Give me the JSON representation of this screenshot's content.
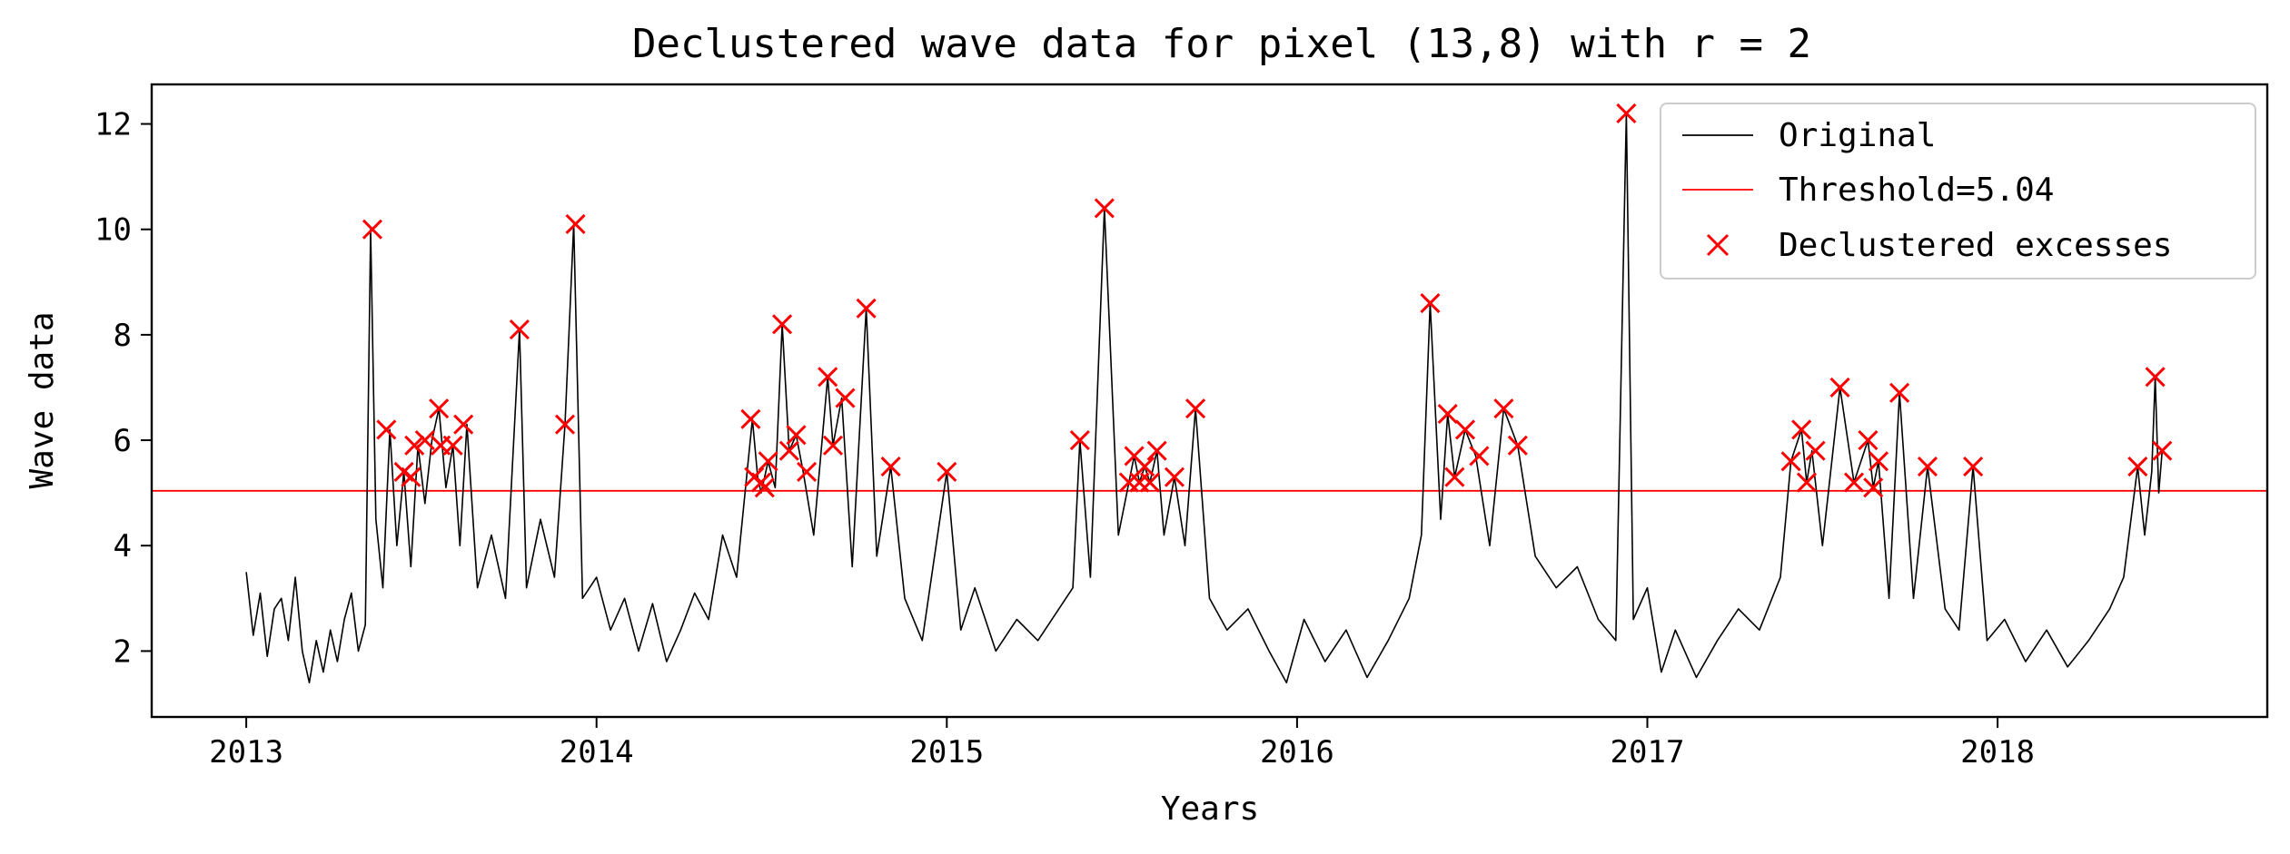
{
  "chart_data": {
    "type": "line",
    "title": "Declustered wave data for pixel (13,8) with r = 2",
    "xlabel": "Years",
    "ylabel": "Wave data",
    "xlim": [
      2012.73,
      2018.77
    ],
    "ylim": [
      0.75,
      12.75
    ],
    "xticks": [
      2013,
      2014,
      2015,
      2016,
      2017,
      2018
    ],
    "yticks": [
      2,
      4,
      6,
      8,
      10,
      12
    ],
    "xtick_labels": [
      "2013",
      "2014",
      "2015",
      "2016",
      "2017",
      "2018"
    ],
    "ytick_labels": [
      "2",
      "4",
      "6",
      "8",
      "10",
      "12"
    ],
    "grid": false,
    "legend_position": "top-right",
    "colors": {
      "original": "#000000",
      "threshold": "#ff0000",
      "excess": "#ff0000"
    },
    "threshold": {
      "label": "Threshold=5.04",
      "value": 5.04
    },
    "series": [
      {
        "name": "Original",
        "style": "line",
        "points": [
          [
            2013.0,
            3.5
          ],
          [
            2013.02,
            2.3
          ],
          [
            2013.04,
            3.1
          ],
          [
            2013.06,
            1.9
          ],
          [
            2013.08,
            2.8
          ],
          [
            2013.1,
            3.0
          ],
          [
            2013.12,
            2.2
          ],
          [
            2013.14,
            3.4
          ],
          [
            2013.16,
            2.0
          ],
          [
            2013.18,
            1.4
          ],
          [
            2013.2,
            2.2
          ],
          [
            2013.22,
            1.6
          ],
          [
            2013.24,
            2.4
          ],
          [
            2013.26,
            1.8
          ],
          [
            2013.28,
            2.6
          ],
          [
            2013.3,
            3.1
          ],
          [
            2013.32,
            2.0
          ],
          [
            2013.34,
            2.5
          ],
          [
            2013.355,
            10.0
          ],
          [
            2013.37,
            4.5
          ],
          [
            2013.39,
            3.2
          ],
          [
            2013.41,
            6.2
          ],
          [
            2013.43,
            4.0
          ],
          [
            2013.45,
            5.4
          ],
          [
            2013.47,
            3.6
          ],
          [
            2013.49,
            5.9
          ],
          [
            2013.51,
            4.8
          ],
          [
            2013.53,
            6.0
          ],
          [
            2013.55,
            6.6
          ],
          [
            2013.57,
            5.1
          ],
          [
            2013.59,
            5.9
          ],
          [
            2013.61,
            4.0
          ],
          [
            2013.63,
            6.3
          ],
          [
            2013.66,
            3.2
          ],
          [
            2013.7,
            4.2
          ],
          [
            2013.74,
            3.0
          ],
          [
            2013.78,
            8.1
          ],
          [
            2013.8,
            3.2
          ],
          [
            2013.84,
            4.5
          ],
          [
            2013.88,
            3.4
          ],
          [
            2013.91,
            6.3
          ],
          [
            2013.935,
            10.1
          ],
          [
            2013.96,
            3.0
          ],
          [
            2014.0,
            3.4
          ],
          [
            2014.04,
            2.4
          ],
          [
            2014.08,
            3.0
          ],
          [
            2014.12,
            2.0
          ],
          [
            2014.16,
            2.9
          ],
          [
            2014.2,
            1.8
          ],
          [
            2014.24,
            2.4
          ],
          [
            2014.28,
            3.1
          ],
          [
            2014.32,
            2.6
          ],
          [
            2014.36,
            4.2
          ],
          [
            2014.4,
            3.4
          ],
          [
            2014.445,
            6.4
          ],
          [
            2014.46,
            5.3
          ],
          [
            2014.47,
            5.0
          ],
          [
            2014.49,
            5.6
          ],
          [
            2014.51,
            5.1
          ],
          [
            2014.53,
            8.2
          ],
          [
            2014.55,
            5.8
          ],
          [
            2014.57,
            6.1
          ],
          [
            2014.59,
            5.4
          ],
          [
            2014.62,
            4.2
          ],
          [
            2014.66,
            7.2
          ],
          [
            2014.675,
            5.9
          ],
          [
            2014.7,
            6.8
          ],
          [
            2014.73,
            3.6
          ],
          [
            2014.77,
            8.5
          ],
          [
            2014.8,
            3.8
          ],
          [
            2014.84,
            5.5
          ],
          [
            2014.88,
            3.0
          ],
          [
            2014.93,
            2.2
          ],
          [
            2015.0,
            5.4
          ],
          [
            2015.04,
            2.4
          ],
          [
            2015.08,
            3.2
          ],
          [
            2015.14,
            2.0
          ],
          [
            2015.2,
            2.6
          ],
          [
            2015.26,
            2.2
          ],
          [
            2015.32,
            2.8
          ],
          [
            2015.36,
            3.2
          ],
          [
            2015.38,
            6.0
          ],
          [
            2015.41,
            3.4
          ],
          [
            2015.45,
            10.4
          ],
          [
            2015.49,
            4.2
          ],
          [
            2015.52,
            5.2
          ],
          [
            2015.535,
            5.7
          ],
          [
            2015.55,
            5.2
          ],
          [
            2015.565,
            5.5
          ],
          [
            2015.58,
            5.2
          ],
          [
            2015.6,
            5.8
          ],
          [
            2015.62,
            4.2
          ],
          [
            2015.65,
            5.3
          ],
          [
            2015.68,
            4.0
          ],
          [
            2015.71,
            6.6
          ],
          [
            2015.75,
            3.0
          ],
          [
            2015.8,
            2.4
          ],
          [
            2015.86,
            2.8
          ],
          [
            2015.92,
            2.0
          ],
          [
            2015.97,
            1.4
          ],
          [
            2016.02,
            2.6
          ],
          [
            2016.08,
            1.8
          ],
          [
            2016.14,
            2.4
          ],
          [
            2016.2,
            1.5
          ],
          [
            2016.26,
            2.2
          ],
          [
            2016.32,
            3.0
          ],
          [
            2016.355,
            4.2
          ],
          [
            2016.38,
            8.6
          ],
          [
            2016.41,
            4.5
          ],
          [
            2016.43,
            6.5
          ],
          [
            2016.45,
            5.3
          ],
          [
            2016.48,
            6.2
          ],
          [
            2016.51,
            5.7
          ],
          [
            2016.55,
            4.0
          ],
          [
            2016.59,
            6.6
          ],
          [
            2016.63,
            5.9
          ],
          [
            2016.68,
            3.8
          ],
          [
            2016.74,
            3.2
          ],
          [
            2016.8,
            3.6
          ],
          [
            2016.86,
            2.6
          ],
          [
            2016.91,
            2.2
          ],
          [
            2016.94,
            12.2
          ],
          [
            2016.96,
            2.6
          ],
          [
            2017.0,
            3.2
          ],
          [
            2017.04,
            1.6
          ],
          [
            2017.08,
            2.4
          ],
          [
            2017.14,
            1.5
          ],
          [
            2017.2,
            2.2
          ],
          [
            2017.26,
            2.8
          ],
          [
            2017.32,
            2.4
          ],
          [
            2017.38,
            3.4
          ],
          [
            2017.41,
            5.6
          ],
          [
            2017.44,
            6.2
          ],
          [
            2017.455,
            5.2
          ],
          [
            2017.47,
            5.8
          ],
          [
            2017.5,
            4.0
          ],
          [
            2017.55,
            7.0
          ],
          [
            2017.59,
            5.2
          ],
          [
            2017.63,
            6.0
          ],
          [
            2017.645,
            5.1
          ],
          [
            2017.66,
            5.6
          ],
          [
            2017.69,
            3.0
          ],
          [
            2017.72,
            6.9
          ],
          [
            2017.76,
            3.0
          ],
          [
            2017.8,
            5.5
          ],
          [
            2017.85,
            2.8
          ],
          [
            2017.89,
            2.4
          ],
          [
            2017.93,
            5.5
          ],
          [
            2017.97,
            2.2
          ],
          [
            2018.02,
            2.6
          ],
          [
            2018.08,
            1.8
          ],
          [
            2018.14,
            2.4
          ],
          [
            2018.2,
            1.7
          ],
          [
            2018.26,
            2.2
          ],
          [
            2018.32,
            2.8
          ],
          [
            2018.36,
            3.4
          ],
          [
            2018.4,
            5.5
          ],
          [
            2018.42,
            4.2
          ],
          [
            2018.44,
            5.4
          ],
          [
            2018.45,
            7.2
          ],
          [
            2018.46,
            5.0
          ],
          [
            2018.47,
            5.8
          ]
        ]
      },
      {
        "name": "Declustered excesses",
        "style": "x-markers",
        "points": [
          [
            2013.36,
            10.0
          ],
          [
            2013.4,
            6.2
          ],
          [
            2013.45,
            5.4
          ],
          [
            2013.47,
            5.3
          ],
          [
            2013.48,
            5.9
          ],
          [
            2013.51,
            6.0
          ],
          [
            2013.55,
            6.6
          ],
          [
            2013.555,
            5.9
          ],
          [
            2013.59,
            5.9
          ],
          [
            2013.62,
            6.3
          ],
          [
            2013.78,
            8.1
          ],
          [
            2013.91,
            6.3
          ],
          [
            2013.94,
            10.1
          ],
          [
            2014.44,
            6.4
          ],
          [
            2014.45,
            5.3
          ],
          [
            2014.47,
            5.2
          ],
          [
            2014.48,
            5.1
          ],
          [
            2014.49,
            5.6
          ],
          [
            2014.53,
            8.2
          ],
          [
            2014.55,
            5.8
          ],
          [
            2014.57,
            6.1
          ],
          [
            2014.6,
            5.4
          ],
          [
            2014.66,
            7.2
          ],
          [
            2014.675,
            5.9
          ],
          [
            2014.71,
            6.8
          ],
          [
            2014.77,
            8.5
          ],
          [
            2014.84,
            5.5
          ],
          [
            2015.0,
            5.4
          ],
          [
            2015.38,
            6.0
          ],
          [
            2015.45,
            10.4
          ],
          [
            2015.52,
            5.2
          ],
          [
            2015.535,
            5.7
          ],
          [
            2015.55,
            5.2
          ],
          [
            2015.565,
            5.5
          ],
          [
            2015.58,
            5.2
          ],
          [
            2015.6,
            5.8
          ],
          [
            2015.65,
            5.3
          ],
          [
            2015.71,
            6.6
          ],
          [
            2016.38,
            8.6
          ],
          [
            2016.43,
            6.5
          ],
          [
            2016.45,
            5.3
          ],
          [
            2016.48,
            6.2
          ],
          [
            2016.52,
            5.7
          ],
          [
            2016.59,
            6.6
          ],
          [
            2016.63,
            5.9
          ],
          [
            2016.94,
            12.2
          ],
          [
            2017.41,
            5.6
          ],
          [
            2017.44,
            6.2
          ],
          [
            2017.455,
            5.2
          ],
          [
            2017.48,
            5.8
          ],
          [
            2017.55,
            7.0
          ],
          [
            2017.59,
            5.2
          ],
          [
            2017.63,
            6.0
          ],
          [
            2017.645,
            5.1
          ],
          [
            2017.66,
            5.6
          ],
          [
            2017.72,
            6.9
          ],
          [
            2017.8,
            5.5
          ],
          [
            2017.93,
            5.5
          ],
          [
            2018.4,
            5.5
          ],
          [
            2018.45,
            7.2
          ],
          [
            2018.47,
            5.8
          ]
        ]
      }
    ],
    "legend": [
      {
        "label": "Original",
        "style": "line",
        "color": "#000000"
      },
      {
        "label": "Threshold=5.04",
        "style": "line",
        "color": "#ff0000"
      },
      {
        "label": "Declustered excesses",
        "style": "x-marker",
        "color": "#ff0000"
      }
    ]
  }
}
